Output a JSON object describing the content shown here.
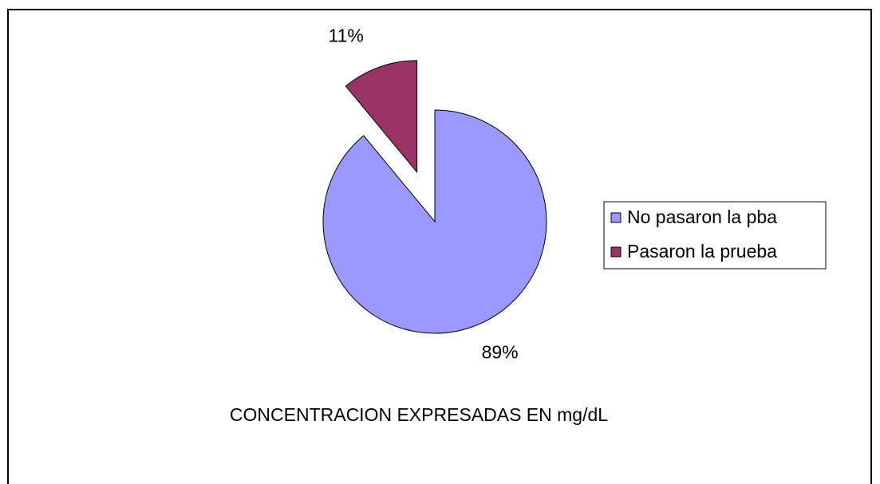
{
  "chart_data": {
    "type": "pie",
    "categories": [
      "No pasaron la pba",
      "Pasaron la prueba"
    ],
    "values": [
      89,
      11
    ],
    "value_labels": [
      "89%",
      "11%"
    ],
    "colors": [
      "#9999ff",
      "#993366"
    ],
    "xlabel": "CONCENTRACION EXPRESADAS EN mg/dL",
    "legend": "right"
  }
}
